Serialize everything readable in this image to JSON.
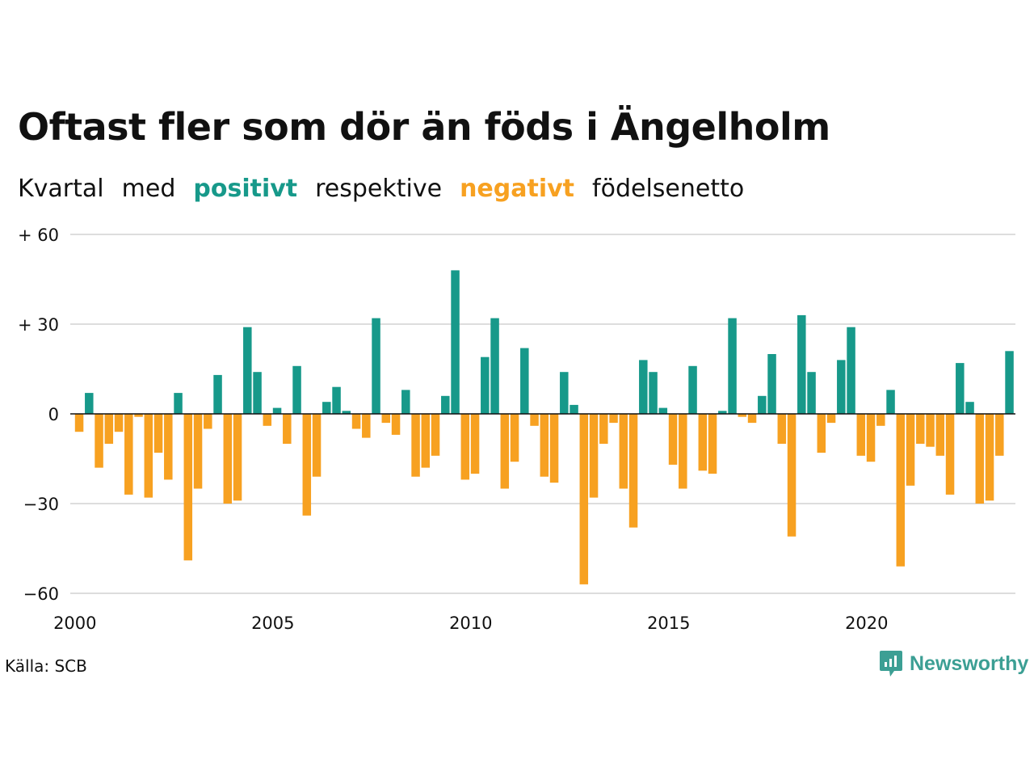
{
  "title": "Oftast fler som dör än föds i Ängelholm",
  "subtitle": {
    "part1": "Kvartal",
    "part2": "med",
    "positive": "positivt",
    "part3": "respektive",
    "negative": "negativt",
    "part4": "födelsenetto"
  },
  "source": "Källa: SCB",
  "logo": {
    "text": "Newsworthy",
    "icon": "newsworthy-chart-bubble-icon"
  },
  "colors": {
    "positive": "#17998a",
    "negative": "#f7a121",
    "grid": "#dddddd",
    "zero_line": "#111111",
    "logo": "#3c9f94"
  },
  "chart_data": {
    "type": "bar",
    "title": "Oftast fler som dör än föds i Ängelholm",
    "xlabel": "",
    "ylabel": "",
    "ylim": [
      -60,
      60
    ],
    "grid": true,
    "y_ticks": [
      {
        "value": 60,
        "label": "+ 60"
      },
      {
        "value": 30,
        "label": "+ 30"
      },
      {
        "value": 0,
        "label": "0"
      },
      {
        "value": -30,
        "label": "−30"
      },
      {
        "value": -60,
        "label": "−60"
      }
    ],
    "x_ticks": [
      2000,
      2005,
      2010,
      2015,
      2020
    ],
    "start_year": 2000,
    "periods_per_year": 4,
    "values": [
      -6,
      7,
      -18,
      -10,
      -6,
      -27,
      -1,
      -28,
      -13,
      -22,
      7,
      -49,
      -25,
      -5,
      13,
      -30,
      -29,
      29,
      14,
      -4,
      2,
      -10,
      16,
      -34,
      -21,
      4,
      9,
      1,
      -5,
      -8,
      32,
      -3,
      -7,
      8,
      -21,
      -18,
      -14,
      6,
      48,
      -22,
      -20,
      19,
      32,
      -25,
      -16,
      22,
      -4,
      -21,
      -23,
      14,
      3,
      -57,
      -28,
      -10,
      -3,
      -25,
      -38,
      18,
      14,
      2,
      -17,
      -25,
      16,
      -19,
      -20,
      1,
      32,
      -1,
      -3,
      6,
      20,
      -10,
      -41,
      33,
      14,
      -13,
      -3,
      18,
      29,
      -14,
      -16,
      -4,
      8,
      -51,
      -24,
      -10,
      -11,
      -14,
      -27,
      17,
      4,
      -30,
      -29,
      -14,
      21
    ]
  }
}
